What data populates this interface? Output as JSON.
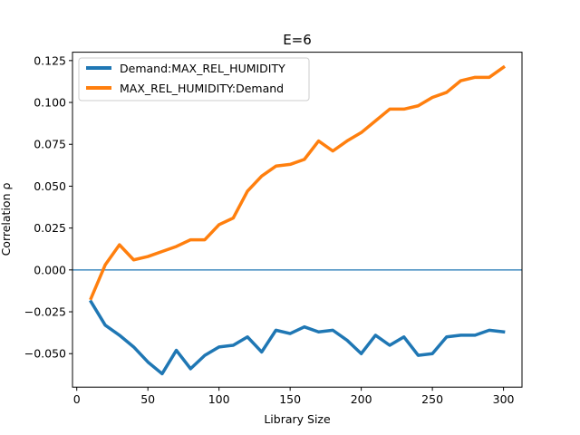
{
  "chart_data": {
    "type": "line",
    "title": "E=6",
    "xlabel": "Library Size",
    "ylabel": "Correlation ρ",
    "xlim": [
      -3,
      313
    ],
    "ylim": [
      -0.07,
      0.13
    ],
    "xticks": [
      0,
      50,
      100,
      150,
      200,
      250,
      300
    ],
    "yticks": [
      -0.05,
      -0.025,
      0.0,
      0.025,
      0.05,
      0.075,
      0.1,
      0.125
    ],
    "xtick_labels": [
      "0",
      "50",
      "100",
      "150",
      "200",
      "250",
      "300"
    ],
    "ytick_labels": [
      "−0.050",
      "−0.025",
      "0.000",
      "0.025",
      "0.050",
      "0.075",
      "0.100",
      "0.125"
    ],
    "grid": false,
    "legend_position": "top-left",
    "hline": {
      "y": 0.0,
      "color": "#1f77b4"
    },
    "x": [
      10,
      20,
      30,
      40,
      50,
      60,
      70,
      80,
      90,
      100,
      110,
      120,
      130,
      140,
      150,
      160,
      170,
      180,
      190,
      200,
      210,
      220,
      230,
      240,
      250,
      260,
      270,
      280,
      290,
      300
    ],
    "series": [
      {
        "name": "Demand:MAX_REL_HUMIDITY",
        "color": "#1f77b4",
        "values": [
          -0.019,
          -0.033,
          -0.039,
          -0.046,
          -0.055,
          -0.062,
          -0.048,
          -0.059,
          -0.051,
          -0.046,
          -0.045,
          -0.04,
          -0.049,
          -0.036,
          -0.038,
          -0.034,
          -0.037,
          -0.036,
          -0.042,
          -0.05,
          -0.039,
          -0.045,
          -0.04,
          -0.051,
          -0.05,
          -0.04,
          -0.039,
          -0.039,
          -0.036,
          -0.037
        ]
      },
      {
        "name": "MAX_REL_HUMIDITY:Demand",
        "color": "#ff7f0e",
        "values": [
          -0.017,
          0.003,
          0.015,
          0.006,
          0.008,
          0.011,
          0.014,
          0.018,
          0.018,
          0.027,
          0.031,
          0.047,
          0.056,
          0.062,
          0.063,
          0.066,
          0.077,
          0.071,
          0.077,
          0.082,
          0.089,
          0.096,
          0.096,
          0.098,
          0.103,
          0.106,
          0.113,
          0.115,
          0.115,
          0.121
        ]
      }
    ]
  }
}
